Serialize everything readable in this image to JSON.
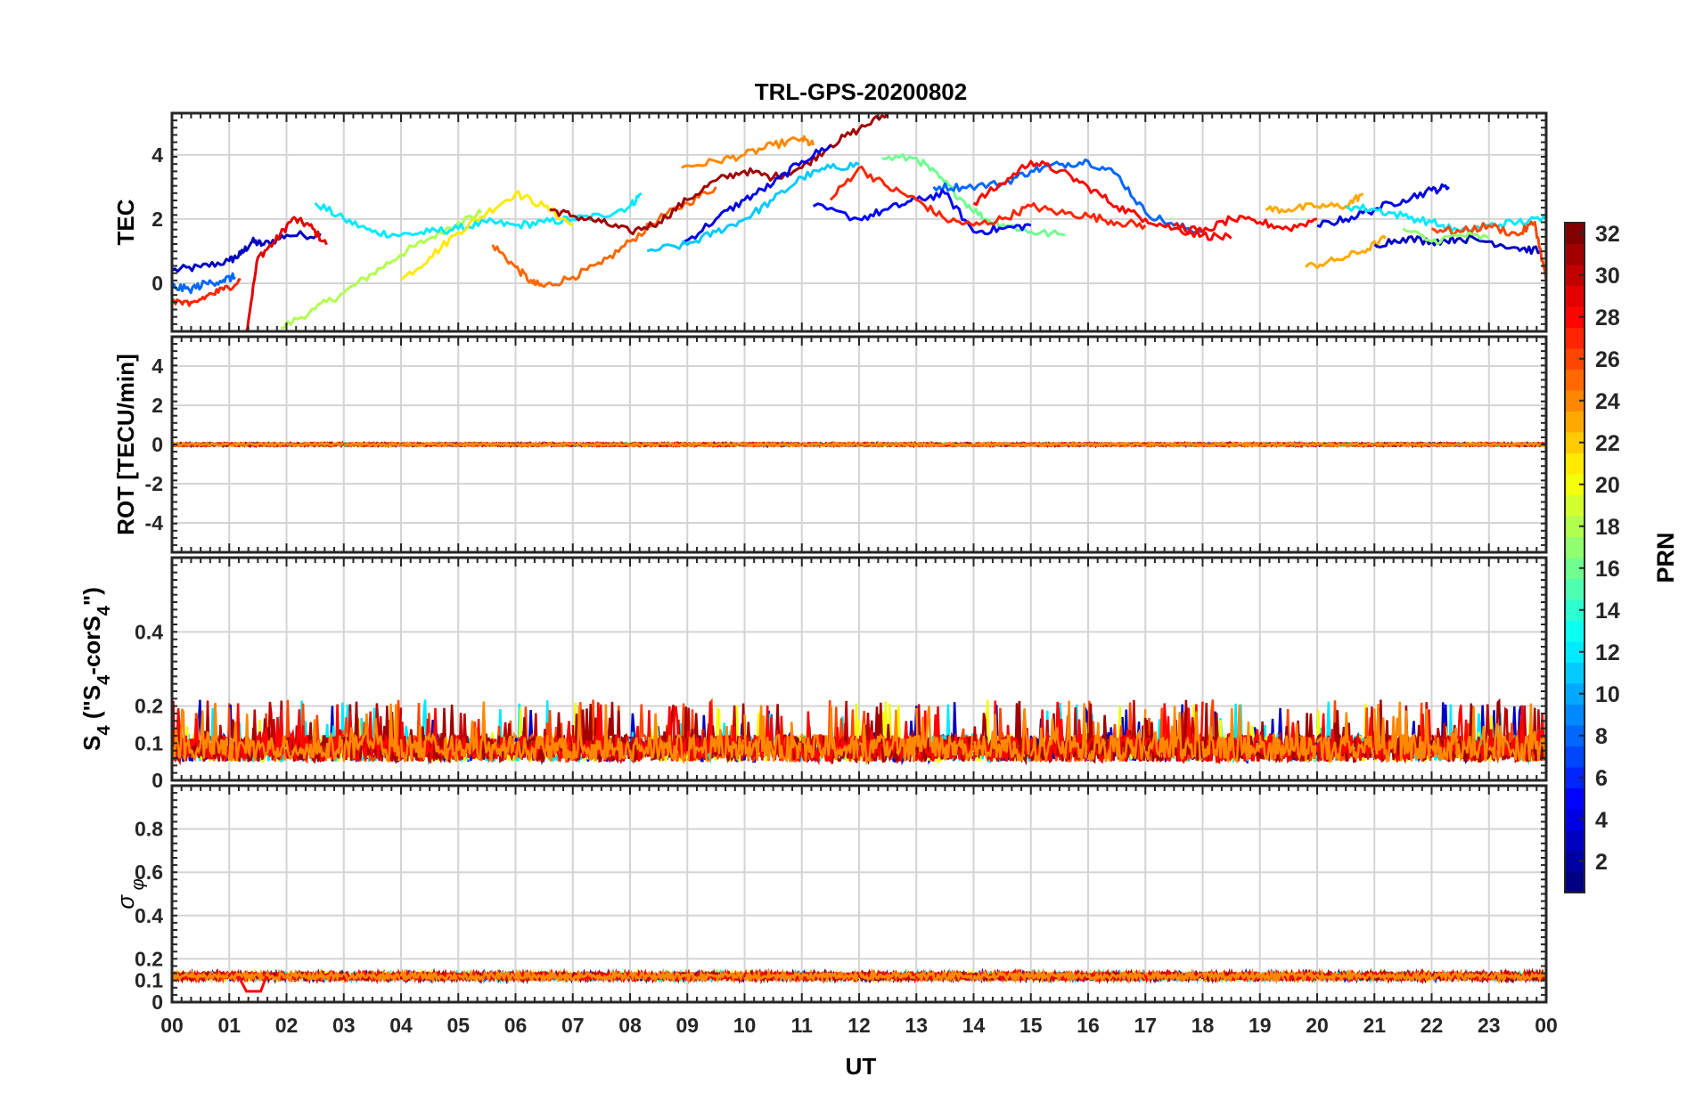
{
  "chart_data": {
    "type": "line",
    "title": "TRL-GPS-20200802",
    "xlabel": "UT",
    "x_ticks": [
      "00",
      "01",
      "02",
      "03",
      "04",
      "05",
      "06",
      "07",
      "08",
      "09",
      "10",
      "11",
      "12",
      "13",
      "14",
      "15",
      "16",
      "17",
      "18",
      "19",
      "20",
      "21",
      "22",
      "23",
      "00"
    ],
    "xlim": [
      0,
      24
    ],
    "colorbar": {
      "label": "PRN",
      "range": [
        1,
        32
      ],
      "ticks": [
        "2",
        "4",
        "6",
        "8",
        "10",
        "12",
        "14",
        "16",
        "18",
        "20",
        "22",
        "24",
        "26",
        "28",
        "30",
        "32"
      ]
    },
    "panels": [
      {
        "name": "tec",
        "ylabel": "TEC",
        "ylim": [
          -1.5,
          5.3
        ],
        "yticks": [
          0,
          2,
          4
        ],
        "ytick_labels": [
          "0",
          "2",
          "4"
        ],
        "series": [
          {
            "prn": 3,
            "x": [
              0,
              0.5,
              1,
              1.2,
              1.4,
              1.6,
              2,
              2.6
            ],
            "y": [
              0.4,
              0.5,
              0.7,
              0.9,
              1.3,
              1.2,
              1.5,
              1.5
            ]
          },
          {
            "prn": 29,
            "x": [
              1.3,
              1.5,
              1.8,
              2.1,
              2.4,
              2.7
            ],
            "y": [
              -1.5,
              0.8,
              1.3,
              2.0,
              1.8,
              1.2
            ]
          },
          {
            "prn": 18,
            "x": [
              1.9,
              2.5,
              3,
              3.5,
              4,
              4.5,
              5,
              5.4
            ],
            "y": [
              -1.4,
              -0.8,
              -0.3,
              0.3,
              0.9,
              1.4,
              1.9,
              2.2
            ]
          },
          {
            "prn": 12,
            "x": [
              2.5,
              3,
              3.5,
              4,
              4.5,
              5,
              5.5,
              6,
              6.5,
              7,
              7.5,
              8,
              8.2
            ],
            "y": [
              2.5,
              2.0,
              1.6,
              1.5,
              1.6,
              1.7,
              1.9,
              1.8,
              1.9,
              2.0,
              2.1,
              2.4,
              2.8
            ]
          },
          {
            "prn": 25,
            "x": [
              5.6,
              6,
              6.3,
              6.5,
              7,
              7.5,
              8,
              8.5,
              9,
              9.5
            ],
            "y": [
              1.2,
              0.5,
              0.0,
              -0.1,
              0.2,
              0.6,
              1.3,
              2.0,
              2.5,
              3.0
            ]
          },
          {
            "prn": 21,
            "x": [
              4,
              4.5,
              5,
              5.5,
              6,
              6.5,
              7
            ],
            "y": [
              0.1,
              0.8,
              1.6,
              2.2,
              2.8,
              2.4,
              1.8
            ]
          },
          {
            "prn": 31,
            "x": [
              6.6,
              7,
              7.5,
              8,
              8.5,
              9,
              9.5,
              10,
              10.5,
              11,
              11.5,
              12,
              12.5
            ],
            "y": [
              2.3,
              2.1,
              1.9,
              1.6,
              1.9,
              2.6,
              3.2,
              3.5,
              3.3,
              3.6,
              4.3,
              4.8,
              5.3
            ]
          },
          {
            "prn": 4,
            "x": [
              8.9,
              9.5,
              10,
              10.5,
              11,
              11.5
            ],
            "y": [
              1.2,
              2.0,
              2.6,
              3.1,
              3.8,
              4.3
            ]
          },
          {
            "prn": 24,
            "x": [
              8.9,
              9.5,
              10,
              10.5,
              11,
              11.2
            ],
            "y": [
              3.6,
              3.8,
              4.0,
              4.3,
              4.5,
              4.3
            ]
          },
          {
            "prn": 11,
            "x": [
              8.3,
              9,
              9.5,
              10,
              10.5,
              11,
              11.5,
              12
            ],
            "y": [
              1.0,
              1.2,
              1.6,
              2.0,
              2.6,
              3.3,
              3.6,
              3.7
            ]
          },
          {
            "prn": 16,
            "x": [
              12.4,
              13,
              13.4,
              13.8,
              14.2,
              14.6,
              15,
              15.6
            ],
            "y": [
              3.9,
              3.9,
              3.3,
              2.6,
              2.0,
              1.8,
              1.6,
              1.5
            ]
          },
          {
            "prn": 8,
            "x": [
              13.3,
              13.8,
              14.5,
              15,
              15.5,
              16,
              16.5,
              17,
              17.5,
              18
            ],
            "y": [
              3.0,
              3.0,
              3.1,
              3.5,
              3.7,
              3.8,
              3.4,
              2.2,
              1.8,
              1.6
            ]
          },
          {
            "prn": 28,
            "x": [
              14,
              14.5,
              15,
              15.5,
              16,
              16.5,
              17,
              17.5,
              18,
              18.5
            ],
            "y": [
              2.5,
              3.1,
              3.8,
              3.5,
              3.0,
              2.4,
              2.0,
              1.7,
              1.5,
              1.4
            ]
          },
          {
            "prn": 5,
            "x": [
              11.2,
              12,
              12.5,
              13,
              13.5,
              14,
              14.5,
              15
            ],
            "y": [
              2.4,
              2.0,
              2.3,
              2.6,
              2.8,
              1.6,
              1.7,
              1.8
            ]
          },
          {
            "prn": 27,
            "x": [
              11.5,
              12,
              12.5,
              13,
              13.5,
              14,
              14.5,
              15,
              15.5,
              16,
              16.5,
              17
            ],
            "y": [
              2.6,
              3.6,
              3.0,
              2.6,
              2.0,
              1.8,
              2.0,
              2.4,
              2.2,
              2.1,
              1.9,
              1.8
            ]
          },
          {
            "prn": 23,
            "x": [
              19.1,
              19.5,
              20,
              20.5,
              20.8
            ],
            "y": [
              2.3,
              2.3,
              2.4,
              2.4,
              2.8
            ]
          },
          {
            "prn": 23,
            "x": [
              19.8,
              20.3,
              20.8,
              21.2
            ],
            "y": [
              0.5,
              0.7,
              1.0,
              1.4
            ]
          },
          {
            "prn": 4,
            "x": [
              20,
              20.5,
              21,
              21.5,
              22,
              22.3
            ],
            "y": [
              1.8,
              2.0,
              2.3,
              2.6,
              2.9,
              3.0
            ]
          },
          {
            "prn": 12,
            "x": [
              20.5,
              21,
              21.5,
              22,
              22.5,
              23,
              23.5,
              24
            ],
            "y": [
              2.4,
              2.3,
              2.1,
              1.9,
              1.6,
              1.8,
              1.9,
              2.0
            ]
          },
          {
            "prn": 3,
            "x": [
              21,
              21.5,
              22,
              22.5,
              23,
              23.5,
              23.9
            ],
            "y": [
              1.2,
              1.4,
              1.3,
              1.4,
              1.3,
              1.1,
              1.0
            ]
          },
          {
            "prn": 28,
            "x": [
              17.5,
              18,
              18.5,
              19,
              19.5,
              20
            ],
            "y": [
              1.8,
              1.6,
              2.0,
              1.9,
              1.7,
              2.0
            ]
          },
          {
            "prn": 26,
            "x": [
              22,
              22.5,
              23,
              23.5,
              23.8,
              24
            ],
            "y": [
              1.7,
              1.6,
              1.8,
              1.5,
              1.9,
              0.1
            ]
          },
          {
            "prn": 17,
            "x": [
              21.5,
              22,
              22.5,
              23
            ],
            "y": [
              1.7,
              1.3,
              1.5,
              1.4
            ]
          },
          {
            "prn": 8,
            "x": [
              0,
              0.3,
              0.6,
              0.9,
              1.1
            ],
            "y": [
              -0.1,
              -0.2,
              0.0,
              0.1,
              0.2
            ]
          },
          {
            "prn": 27,
            "x": [
              0,
              0.3,
              0.6,
              0.9,
              1.2
            ],
            "y": [
              -0.5,
              -0.7,
              -0.4,
              -0.2,
              0.1
            ]
          }
        ]
      },
      {
        "name": "rot",
        "ylabel": "ROT [TECU/min]",
        "ylim": [
          -5.5,
          5.5
        ],
        "yticks": [
          -4,
          -2,
          0,
          2,
          4
        ],
        "ytick_labels": [
          "-4",
          "-2",
          "0",
          "2",
          "4"
        ],
        "baseline": 0,
        "noise_amplitude": 0.12
      },
      {
        "name": "s4",
        "ylabel": "S4 (\"S4-corS4\")",
        "ylim": [
          0,
          0.6
        ],
        "yticks": [
          0,
          0.1,
          0.2,
          0.4
        ],
        "ytick_labels": [
          "0",
          "0.1",
          "0.2",
          "0.4"
        ],
        "baseline": 0.05,
        "noise_amplitude": 0.12
      },
      {
        "name": "sigma",
        "ylabel": "σ φ",
        "ylim": [
          0,
          1
        ],
        "yticks": [
          0,
          0.1,
          0.2,
          0.4,
          0.6,
          0.8
        ],
        "ytick_labels": [
          "0",
          "0.1",
          "0.2",
          "0.4",
          "0.6",
          "0.8"
        ],
        "baseline": 0.12,
        "noise_amplitude": 0.03
      }
    ]
  }
}
